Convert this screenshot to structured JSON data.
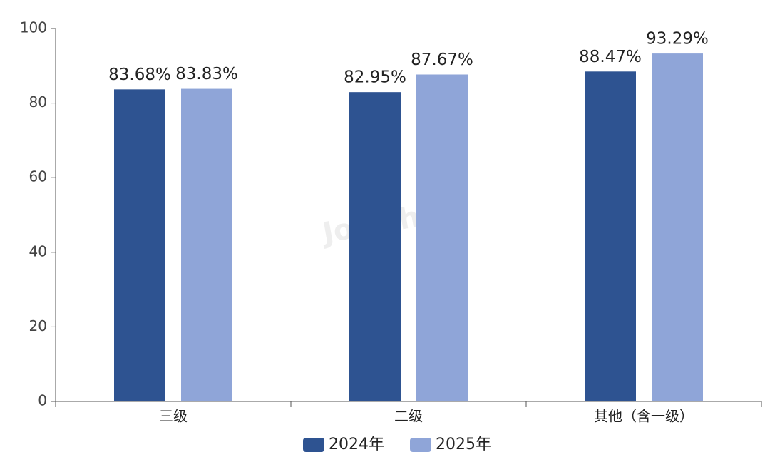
{
  "chart_data": {
    "type": "bar",
    "categories": [
      "三级",
      "二级",
      "其他（含一级）"
    ],
    "series": [
      {
        "name": "2024年",
        "color": "#2e5391",
        "values": [
          83.68,
          82.95,
          88.47
        ],
        "value_labels": [
          "83.68%",
          "82.95%",
          "88.47%"
        ]
      },
      {
        "name": "2025年",
        "color": "#8fa5d8",
        "values": [
          83.83,
          87.67,
          93.29
        ],
        "value_labels": [
          "83.83%",
          "87.67%",
          "93.29%"
        ]
      }
    ],
    "ylim": [
      0,
      100
    ],
    "yticks": [
      0,
      20,
      40,
      60,
      80,
      100
    ],
    "grid": false,
    "legend": "bottom",
    "watermark": "Joinchain"
  }
}
